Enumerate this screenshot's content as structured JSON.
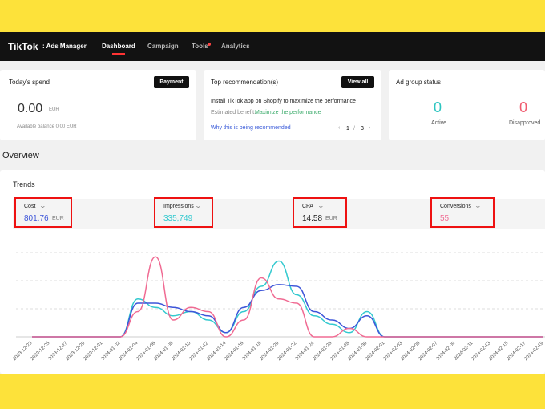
{
  "nav": {
    "brand": "TikTok",
    "brand_sub": ": Ads Manager",
    "items": [
      "Dashboard",
      "Campaign",
      "Tools",
      "Analytics"
    ]
  },
  "spend": {
    "title": "Today's spend",
    "button": "Payment",
    "amount": "0.00",
    "currency": "EUR",
    "balance": "Available balance 0.00 EUR"
  },
  "recommendation": {
    "title": "Top recommendation(s)",
    "button": "View all",
    "text": "Install TikTok app on Shopify to maximize the performance",
    "benefit_label": "Estimated benefit:",
    "benefit": "Maximize the performance",
    "link": "Why this is being recommended",
    "page": "1",
    "pages": "3",
    "sep": "/"
  },
  "status": {
    "title": "Ad group status",
    "active_value": "0",
    "active_label": "Active",
    "disapproved_value": "0",
    "disapproved_label": "Disapproved"
  },
  "overview": "Overview",
  "trends": {
    "title": "Trends",
    "metrics": [
      {
        "name": "Cost",
        "value": "801.76",
        "unit": "EUR"
      },
      {
        "name": "Impressions",
        "value": "335,749"
      },
      {
        "name": "CPA",
        "value": "14.58",
        "unit": "EUR"
      },
      {
        "name": "Conversions",
        "value": "55"
      }
    ]
  },
  "chart_data": {
    "type": "line",
    "x": [
      "2023-12-23",
      "2023-12-25",
      "2023-12-27",
      "2023-12-29",
      "2023-12-31",
      "2024-01-02",
      "2024-01-04",
      "2024-01-06",
      "2024-01-08",
      "2024-01-10",
      "2024-01-12",
      "2024-01-14",
      "2024-01-16",
      "2024-01-18",
      "2024-01-20",
      "2024-01-22",
      "2024-01-24",
      "2024-01-26",
      "2024-01-28",
      "2024-01-30",
      "2024-02-01",
      "2024-02-03",
      "2024-02-05",
      "2024-02-07",
      "2024-02-09",
      "2024-02-11",
      "2024-02-13",
      "2024-02-15",
      "2024-02-17",
      "2024-02-19"
    ],
    "ylim": [
      0,
      100
    ],
    "series": [
      {
        "name": "Impressions",
        "color": "#33c9cf",
        "values": [
          0,
          0,
          0,
          0,
          0,
          0,
          45,
          35,
          25,
          30,
          20,
          5,
          30,
          60,
          90,
          50,
          25,
          15,
          5,
          30,
          0,
          0,
          0,
          0,
          0,
          0,
          0,
          0,
          0,
          0
        ]
      },
      {
        "name": "Cost",
        "color": "#3d55d9",
        "values": [
          0,
          0,
          0,
          0,
          0,
          0,
          40,
          40,
          35,
          30,
          25,
          5,
          35,
          55,
          62,
          60,
          30,
          20,
          10,
          25,
          0,
          0,
          0,
          0,
          0,
          0,
          0,
          0,
          0,
          0
        ]
      },
      {
        "name": "Conversions",
        "color": "#f06b93",
        "values": [
          0,
          0,
          0,
          0,
          0,
          0,
          30,
          95,
          20,
          35,
          30,
          0,
          20,
          70,
          45,
          40,
          0,
          0,
          10,
          0,
          0,
          0,
          0,
          0,
          0,
          0,
          0,
          0,
          0,
          0
        ]
      }
    ]
  }
}
